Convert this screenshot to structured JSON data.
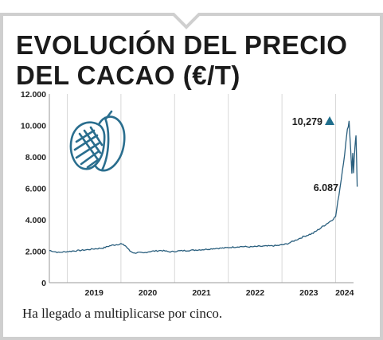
{
  "title_line1": "EVOLUCIÓN DEL PRECIO",
  "title_line2": "DEL CACAO (€/T)",
  "caption": "Ha llegado a multiplicarse por cinco.",
  "colors": {
    "line": "#2a5f7e",
    "accent": "#1f6e8c",
    "frame": "#cfcfcf",
    "grid": "#d8d8d8"
  },
  "icon": "cacao-pod-icon",
  "chart_data": {
    "type": "line",
    "title": "EVOLUCIÓN DEL PRECIO DEL CACAO (€/T)",
    "xlabel": "",
    "ylabel": "",
    "ylim": [
      0,
      12000
    ],
    "xlim": [
      "2018-09",
      "2024-05"
    ],
    "grid": "vertical",
    "yticks": [
      "0",
      "2.000",
      "4.000",
      "6.000",
      "8.000",
      "10.000",
      "12.000"
    ],
    "yticks_values": [
      0,
      2000,
      4000,
      6000,
      8000,
      10000,
      12000
    ],
    "xticks": [
      "2019",
      "2020",
      "2021",
      "2022",
      "2023",
      "2024"
    ],
    "series": [
      {
        "points": [
          [
            "2018-09",
            2050
          ],
          [
            "2018-11",
            1920
          ],
          [
            "2019-01",
            1980
          ],
          [
            "2019-03",
            2030
          ],
          [
            "2019-05",
            2080
          ],
          [
            "2019-07",
            2150
          ],
          [
            "2019-09",
            2200
          ],
          [
            "2019-10",
            2300
          ],
          [
            "2019-11",
            2380
          ],
          [
            "2019-12",
            2420
          ],
          [
            "2020-01",
            2470
          ],
          [
            "2020-02",
            2350
          ],
          [
            "2020-03",
            2020
          ],
          [
            "2020-04",
            1880
          ],
          [
            "2020-05",
            1920
          ],
          [
            "2020-06",
            1880
          ],
          [
            "2020-07",
            1960
          ],
          [
            "2020-08",
            2000
          ],
          [
            "2020-10",
            2050
          ],
          [
            "2020-12",
            1960
          ],
          [
            "2021-02",
            2020
          ],
          [
            "2021-04",
            2050
          ],
          [
            "2021-06",
            2080
          ],
          [
            "2021-08",
            2120
          ],
          [
            "2021-10",
            2180
          ],
          [
            "2021-12",
            2200
          ],
          [
            "2022-02",
            2260
          ],
          [
            "2022-04",
            2300
          ],
          [
            "2022-06",
            2270
          ],
          [
            "2022-08",
            2310
          ],
          [
            "2022-10",
            2330
          ],
          [
            "2022-12",
            2360
          ],
          [
            "2023-02",
            2450
          ],
          [
            "2023-04",
            2700
          ],
          [
            "2023-06",
            2950
          ],
          [
            "2023-08",
            3150
          ],
          [
            "2023-09",
            3350
          ],
          [
            "2023-10",
            3550
          ],
          [
            "2023-11",
            3750
          ],
          [
            "2023-12",
            3950
          ],
          [
            "2024-01",
            4200
          ],
          [
            "2024-02",
            6087
          ],
          [
            "2024-03",
            8200
          ],
          [
            "2024-03-20",
            9700
          ],
          [
            "2024-04",
            10279
          ],
          [
            "2024-04-12",
            8500
          ],
          [
            "2024-04-20",
            6900
          ],
          [
            "2024-04-26",
            8300
          ],
          [
            "2024-05",
            6900
          ],
          [
            "2024-05-10",
            8600
          ],
          [
            "2024-05-18",
            9300
          ],
          [
            "2024-05-26",
            6100
          ]
        ]
      }
    ],
    "annotations": [
      {
        "text": "10,279",
        "marker": "triangle-up",
        "value": 10279
      },
      {
        "text": "6.087",
        "value": 6087
      }
    ]
  }
}
